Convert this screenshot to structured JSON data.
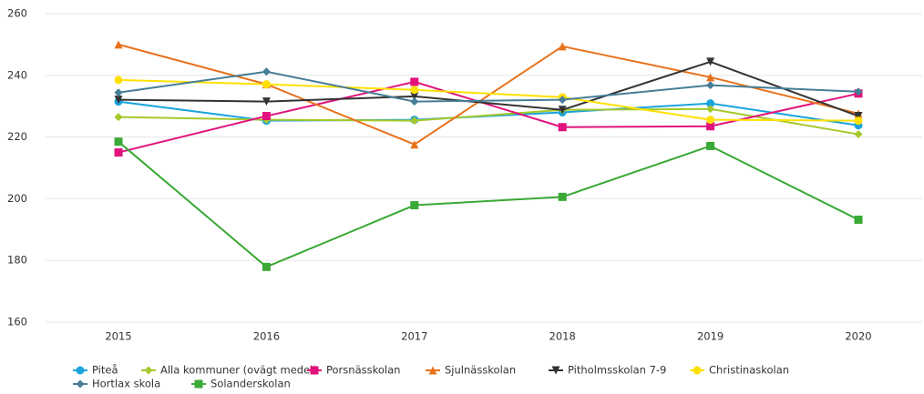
{
  "chart_data": {
    "type": "line",
    "categories": [
      "2015",
      "2016",
      "2017",
      "2018",
      "2019",
      "2020"
    ],
    "ylim": [
      160,
      260
    ],
    "yticks": [
      160,
      180,
      200,
      220,
      240,
      260
    ],
    "grid": true,
    "series": [
      {
        "name": "Piteå",
        "color": "#1aa3dc",
        "marker": "circle",
        "values": [
          231.5,
          225.3,
          225.6,
          228,
          230.9,
          223.8
        ]
      },
      {
        "name": "Alla kommuner (ovägt medel)",
        "color": "#a5c82a",
        "marker": "diamond",
        "values": [
          226.5,
          225.6,
          225.3,
          228.8,
          229.1,
          220.9
        ]
      },
      {
        "name": "Porsnässkolan",
        "color": "#e2127c",
        "marker": "square",
        "values": [
          215,
          226.8,
          237.9,
          223.2,
          223.5,
          234.1
        ]
      },
      {
        "name": "Sjulnässkolan",
        "color": "#e8721c",
        "marker": "triangle",
        "values": [
          250,
          237.1,
          217.6,
          249.4,
          239.4,
          227.6
        ]
      },
      {
        "name": "Pitholmsskolan 7-9",
        "color": "#333333",
        "marker": "triangle-down",
        "values": [
          232.1,
          231.5,
          233.2,
          228.8,
          244.4,
          226.8
        ]
      },
      {
        "name": "Christinaskolan",
        "color": "#ffe000",
        "marker": "circle",
        "values": [
          238.5,
          237.1,
          235.3,
          232.9,
          225.6,
          225.3
        ]
      },
      {
        "name": "Hortlax skola",
        "color": "#467d97",
        "marker": "diamond",
        "values": [
          234.4,
          241.2,
          231.5,
          232.1,
          236.8,
          234.7
        ]
      },
      {
        "name": "Solanderskolan",
        "color": "#3aa935",
        "marker": "square",
        "values": [
          218.5,
          177.9,
          197.9,
          200.6,
          217.1,
          193.2
        ]
      }
    ]
  }
}
